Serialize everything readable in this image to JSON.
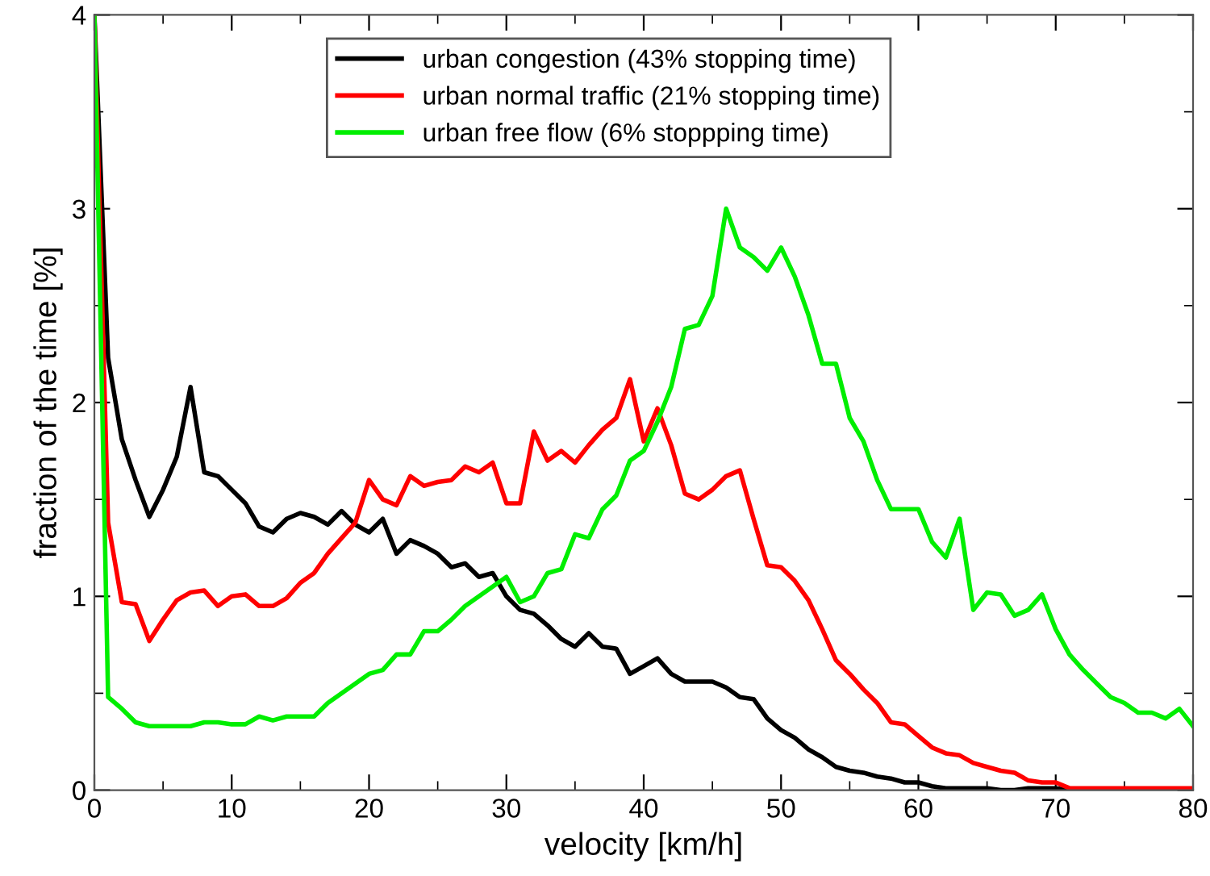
{
  "chart_data": {
    "type": "line",
    "xlabel": "velocity [km/h]",
    "ylabel": "fraction of the time [%]",
    "x": [
      0,
      1,
      2,
      3,
      4,
      5,
      6,
      7,
      8,
      9,
      10,
      11,
      12,
      13,
      14,
      15,
      16,
      17,
      18,
      19,
      20,
      21,
      22,
      23,
      24,
      25,
      26,
      27,
      28,
      29,
      30,
      31,
      32,
      33,
      34,
      35,
      36,
      37,
      38,
      39,
      40,
      41,
      42,
      43,
      44,
      45,
      46,
      47,
      48,
      49,
      50,
      51,
      52,
      53,
      54,
      55,
      56,
      57,
      58,
      59,
      60,
      61,
      62,
      63,
      64,
      65,
      66,
      67,
      68,
      69,
      70,
      71,
      72,
      73,
      74,
      75,
      76,
      77,
      78,
      79,
      80
    ],
    "series": [
      {
        "name": "urban congestion (43% stopping time)",
        "color": "#000000",
        "values": [
          4,
          2.23,
          1.81,
          1.6,
          1.41,
          1.55,
          1.72,
          2.08,
          1.64,
          1.62,
          1.55,
          1.48,
          1.36,
          1.33,
          1.4,
          1.43,
          1.41,
          1.37,
          1.44,
          1.37,
          1.33,
          1.4,
          1.22,
          1.29,
          1.26,
          1.22,
          1.15,
          1.17,
          1.1,
          1.12,
          1.0,
          0.93,
          0.91,
          0.85,
          0.78,
          0.74,
          0.81,
          0.74,
          0.73,
          0.6,
          0.64,
          0.68,
          0.6,
          0.56,
          0.56,
          0.56,
          0.53,
          0.48,
          0.47,
          0.37,
          0.31,
          0.27,
          0.21,
          0.17,
          0.12,
          0.1,
          0.09,
          0.07,
          0.06,
          0.04,
          0.04,
          0.02,
          0.01,
          0.01,
          0.01,
          0.01,
          0,
          0,
          0.01,
          0.01,
          0.01,
          0,
          0,
          0,
          0,
          0,
          0,
          0,
          0,
          0,
          0
        ]
      },
      {
        "name": "urban normal traffic (21% stopping time)",
        "color": "#ff0000",
        "values": [
          4,
          1.38,
          0.97,
          0.96,
          0.77,
          0.88,
          0.98,
          1.02,
          1.03,
          0.95,
          1.0,
          1.01,
          0.95,
          0.95,
          0.99,
          1.07,
          1.12,
          1.22,
          1.3,
          1.38,
          1.6,
          1.5,
          1.47,
          1.62,
          1.57,
          1.59,
          1.6,
          1.67,
          1.64,
          1.69,
          1.48,
          1.48,
          1.85,
          1.7,
          1.75,
          1.69,
          1.78,
          1.86,
          1.92,
          2.12,
          1.8,
          1.97,
          1.78,
          1.53,
          1.5,
          1.55,
          1.62,
          1.65,
          1.4,
          1.16,
          1.15,
          1.08,
          0.98,
          0.83,
          0.67,
          0.6,
          0.52,
          0.45,
          0.35,
          0.34,
          0.28,
          0.22,
          0.19,
          0.18,
          0.14,
          0.12,
          0.1,
          0.09,
          0.05,
          0.04,
          0.04,
          0.01,
          0.01,
          0.01,
          0.01,
          0.01,
          0.01,
          0.01,
          0.01,
          0.01,
          0.01
        ]
      },
      {
        "name": "urban free flow (6% stoppping time)",
        "color": "#00ee00",
        "values": [
          4,
          0.48,
          0.42,
          0.35,
          0.33,
          0.33,
          0.33,
          0.33,
          0.35,
          0.35,
          0.34,
          0.34,
          0.38,
          0.36,
          0.38,
          0.38,
          0.38,
          0.45,
          0.5,
          0.55,
          0.6,
          0.62,
          0.7,
          0.7,
          0.82,
          0.82,
          0.88,
          0.95,
          1.0,
          1.05,
          1.1,
          0.97,
          1.0,
          1.12,
          1.14,
          1.32,
          1.3,
          1.45,
          1.52,
          1.7,
          1.75,
          1.9,
          2.08,
          2.38,
          2.4,
          2.55,
          3.0,
          2.8,
          2.75,
          2.68,
          2.8,
          2.65,
          2.45,
          2.2,
          2.2,
          1.92,
          1.8,
          1.6,
          1.45,
          1.45,
          1.45,
          1.28,
          1.2,
          1.4,
          0.93,
          1.02,
          1.01,
          0.9,
          0.93,
          1.01,
          0.83,
          0.7,
          0.62,
          0.55,
          0.48,
          0.45,
          0.4,
          0.4,
          0.37,
          0.42,
          0.33
        ]
      }
    ],
    "xlim": [
      0,
      80
    ],
    "ylim": [
      0,
      4
    ],
    "xticks": [
      0,
      10,
      20,
      30,
      40,
      50,
      60,
      70,
      80
    ],
    "yticks": [
      0,
      1,
      2,
      3,
      4
    ],
    "grid": false,
    "legend": "top",
    "marker": "none",
    "line_style": "solid"
  }
}
